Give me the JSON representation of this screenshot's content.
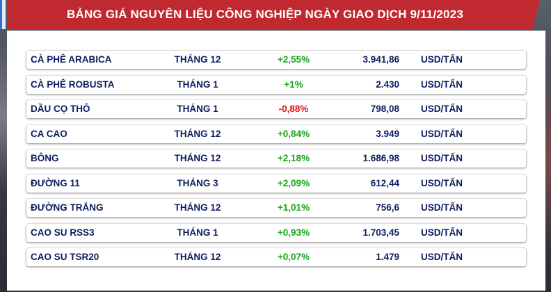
{
  "title": "BẢNG GIÁ NGUYÊN LIỆU CÔNG NGHIỆP NGÀY GIAO DỊCH 9/11/2023",
  "colors": {
    "title_bar": "#c0292f",
    "text": "#0d1b5e",
    "up": "#1aa51a",
    "down": "#e01010"
  },
  "rows": [
    {
      "name": "CÀ PHÊ ARABICA",
      "month": "THÁNG 12",
      "change": "+2,55%",
      "direction": "up",
      "price": "3.941,86",
      "unit": "USD/TẤN"
    },
    {
      "name": "CÀ PHÊ ROBUSTA",
      "month": "THÁNG 1",
      "change": "+1%",
      "direction": "up",
      "price": "2.430",
      "unit": "USD/TẤN"
    },
    {
      "name": "DẦU CỌ THÔ",
      "month": "THÁNG 1",
      "change": "-0,88%",
      "direction": "down",
      "price": "798,08",
      "unit": "USD/TẤN"
    },
    {
      "name": "CA CAO",
      "month": "THÁNG 12",
      "change": "+0,84%",
      "direction": "up",
      "price": "3.949",
      "unit": "USD/TẤN"
    },
    {
      "name": "BÔNG",
      "month": "THÁNG 12",
      "change": "+2,18%",
      "direction": "up",
      "price": "1.686,98",
      "unit": "USD/TẤN"
    },
    {
      "name": "ĐƯỜNG 11",
      "month": "THÁNG 3",
      "change": "+2,09%",
      "direction": "up",
      "price": "612,44",
      "unit": "USD/TẤN"
    },
    {
      "name": "ĐƯỜNG TRẮNG",
      "month": "THÁNG 12",
      "change": "+1,01%",
      "direction": "up",
      "price": "756,6",
      "unit": "USD/TẤN"
    },
    {
      "name": "CAO SU RSS3",
      "month": "THÁNG 1",
      "change": "+0,93%",
      "direction": "up",
      "price": "1.703,45",
      "unit": "USD/TẤN"
    },
    {
      "name": "CAO SU TSR20",
      "month": "THÁNG 12",
      "change": "+0,07%",
      "direction": "up",
      "price": "1.479",
      "unit": "USD/TẤN"
    }
  ]
}
